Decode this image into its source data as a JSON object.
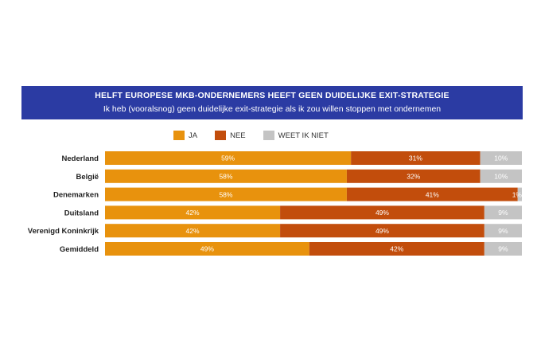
{
  "chart_data": {
    "type": "bar",
    "orientation": "horizontal",
    "stacked": true,
    "title": "HELFT EUROPESE MKB-ONDERNEMERS HEEFT GEEN DUIDELIJKE EXIT-STRATEGIE",
    "subtitle": "Ik heb (vooralsnog) geen duidelijke exit-strategie als ik zou willen stoppen met ondernemen",
    "categories": [
      "Nederland",
      "België",
      "Denemarken",
      "Duitsland",
      "Verenigd Koninkrijk",
      "Gemiddeld"
    ],
    "series": [
      {
        "name": "JA",
        "color": "#e8920d",
        "values": [
          59,
          58,
          58,
          42,
          42,
          49
        ],
        "labels": [
          "59%",
          "58%",
          "58%",
          "42%",
          "42%",
          "49%"
        ]
      },
      {
        "name": "NEE",
        "color": "#c24d0c",
        "values": [
          31,
          32,
          41,
          49,
          49,
          42
        ],
        "labels": [
          "31%",
          "32%",
          "41%",
          "49%",
          "49%",
          "42%"
        ]
      },
      {
        "name": "WEET IK NIET",
        "color": "#c4c4c4",
        "values": [
          10,
          10,
          1,
          9,
          9,
          9
        ],
        "labels": [
          "10%",
          "10%",
          "1%",
          "9%",
          "9%",
          "9%"
        ]
      }
    ],
    "xlim": [
      0,
      100
    ],
    "legend_position": "top"
  }
}
